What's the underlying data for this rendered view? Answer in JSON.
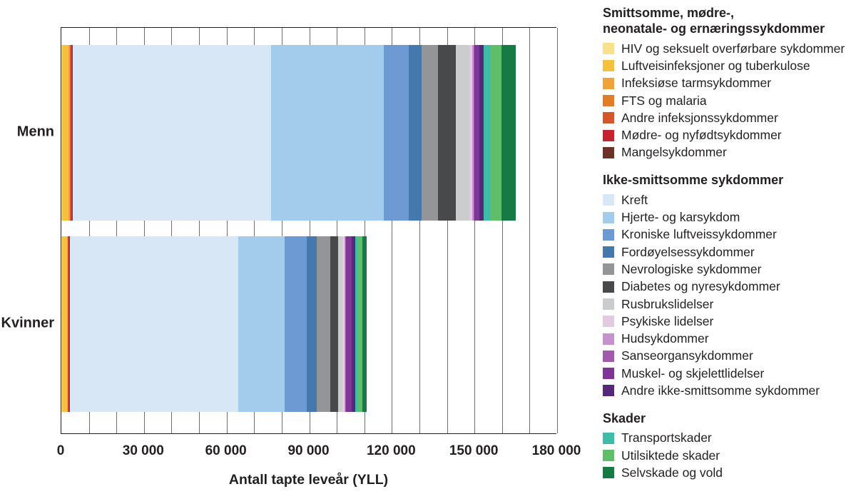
{
  "chart_data": {
    "type": "bar",
    "orientation": "horizontal",
    "stacked": true,
    "categories": [
      "Menn",
      "Kvinner"
    ],
    "xlabel": "Antall tapte leveår (YLL)",
    "xlim": [
      0,
      180000
    ],
    "xticks": [
      0,
      30000,
      60000,
      90000,
      120000,
      150000,
      180000
    ],
    "xtick_labels": [
      "0",
      "30 000",
      "60 000",
      "90 000",
      "120 000",
      "150 000",
      "180 000"
    ],
    "minor_gridline_step": 10000,
    "grid": true,
    "legend_position": "right",
    "groups": [
      {
        "title": "Smittsomme, mødre-, neonatale- og ernæringssykdommer",
        "title_lines": [
          "Smittsomme, mødre-,",
          "neonatale- og ernæringssykdommer"
        ],
        "series": [
          {
            "name": "HIV og seksuelt overførbare sykdommer",
            "color": "#F8E08E",
            "values": [
              250,
              150
            ]
          },
          {
            "name": "Luftveisinfeksjoner og tuberkulose",
            "color": "#F4C13E",
            "values": [
              2400,
              1900
            ]
          },
          {
            "name": "Infeksiøse tarmsykdommer",
            "color": "#F0A23B",
            "values": [
              350,
              250
            ]
          },
          {
            "name": "FTS og malaria",
            "color": "#E07E28",
            "values": [
              200,
              130
            ]
          },
          {
            "name": "Andre infeksjonssykdommer",
            "color": "#D4572B",
            "values": [
              400,
              250
            ]
          },
          {
            "name": "Mødre- og nyfødtsykdommer",
            "color": "#C22430",
            "values": [
              450,
              350
            ]
          },
          {
            "name": "Mangelsykdommer",
            "color": "#6C3127",
            "values": [
              130,
              130
            ]
          }
        ]
      },
      {
        "title": "Ikke-smittsomme sykdommer",
        "title_lines": [
          "Ikke-smittsomme sykdommer"
        ],
        "series": [
          {
            "name": "Kreft",
            "color": "#D7E7F6",
            "values": [
              72000,
              61000
            ]
          },
          {
            "name": "Hjerte- og karsykdom",
            "color": "#A3CBEB",
            "values": [
              41000,
              17000
            ]
          },
          {
            "name": "Kroniske luftveissykdommer",
            "color": "#6D9AD3",
            "values": [
              9000,
              8000
            ]
          },
          {
            "name": "Fordøyelsessykdommer",
            "color": "#4579AE",
            "values": [
              4500,
              3500
            ]
          },
          {
            "name": "Nevrologiske sykdommer",
            "color": "#939598",
            "values": [
              6000,
              5000
            ]
          },
          {
            "name": "Diabetes og nyresykdommer",
            "color": "#48494B",
            "values": [
              6500,
              2800
            ]
          },
          {
            "name": "Rusbrukslidelser",
            "color": "#CBCCCE",
            "values": [
              5000,
              1500
            ]
          },
          {
            "name": "Psykiske lidelser",
            "color": "#E3CAE3",
            "values": [
              1100,
              900
            ]
          },
          {
            "name": "Hudsykdommer",
            "color": "#C493CB",
            "values": [
              350,
              300
            ]
          },
          {
            "name": "Sanseorgansykdommer",
            "color": "#A25AAD",
            "values": [
              250,
              200
            ]
          },
          {
            "name": "Muskel- og skjelettlidelser",
            "color": "#7E3596",
            "values": [
              2000,
              2200
            ]
          },
          {
            "name": "Andre ikke-smittsomme sykdommer",
            "color": "#552879",
            "values": [
              1600,
              1300
            ]
          }
        ]
      },
      {
        "title": "Skader",
        "title_lines": [
          "Skader"
        ],
        "series": [
          {
            "name": "Transportskader",
            "color": "#3FBCA9",
            "values": [
              2200,
              700
            ]
          },
          {
            "name": "Utilsiktede skader",
            "color": "#5FBE6A",
            "values": [
              4200,
              1700
            ]
          },
          {
            "name": "Selvskade og vold",
            "color": "#157A44",
            "values": [
              5200,
              1600
            ]
          }
        ]
      }
    ]
  }
}
